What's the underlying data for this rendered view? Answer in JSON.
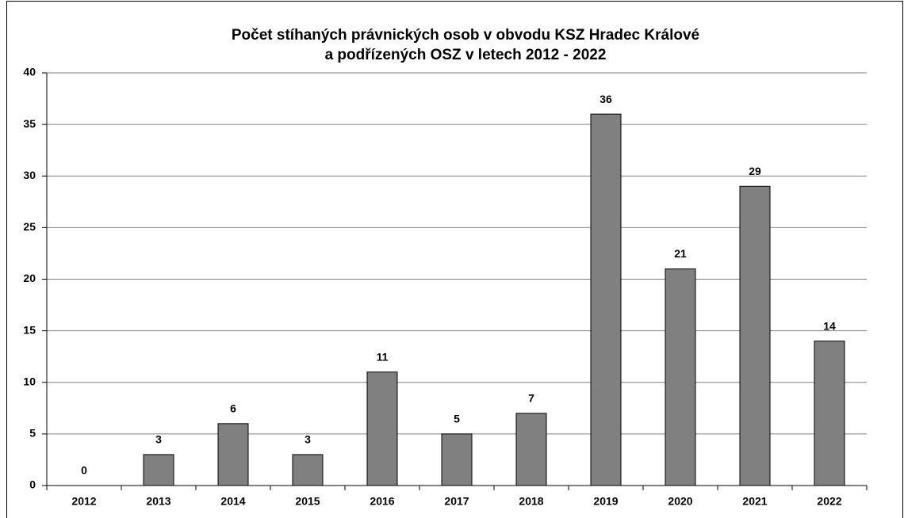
{
  "chart_data": {
    "type": "bar",
    "title": [
      "Počet stíhaných právnických osob v obvodu KSZ Hradec Králové",
      "a podřízených OSZ v letech 2012 - 2022"
    ],
    "categories": [
      "2012",
      "2013",
      "2014",
      "2015",
      "2016",
      "2017",
      "2018",
      "2019",
      "2020",
      "2021",
      "2022"
    ],
    "values": [
      0,
      3,
      6,
      3,
      11,
      5,
      7,
      36,
      21,
      29,
      14
    ],
    "color": "#808080",
    "ylim": [
      0,
      40
    ],
    "yticks": [
      0,
      5,
      10,
      15,
      20,
      25,
      30,
      35,
      40
    ],
    "grid": true
  }
}
